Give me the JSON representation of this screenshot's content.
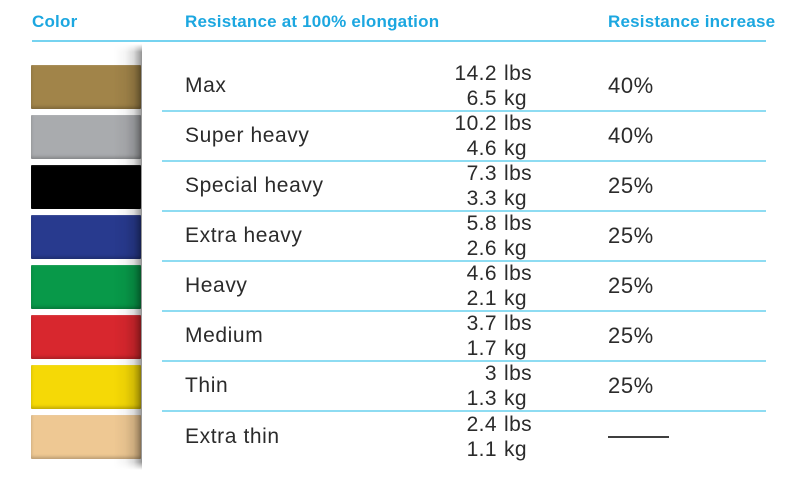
{
  "header": {
    "col_color": "Color",
    "col_resistance": "Resistance at 100% elongation",
    "col_increase": "Resistance increase"
  },
  "units": {
    "lbs": "lbs",
    "kg": "kg"
  },
  "colors": {
    "accent_cyan": "#1CA7E0",
    "header_rule": "#76D3F0",
    "row_rule": "#8EDCF2",
    "text_dark": "#2B2B2B",
    "roll_shade_gray": "#9A9A9A",
    "dash_gray": "#3F3F3F"
  },
  "chart_data": {
    "type": "table",
    "title": "Resistance band color chart",
    "columns": [
      "Color",
      "Resistance at 100% elongation",
      "Resistance increase"
    ],
    "rows": [
      {
        "color_name": "gold",
        "swatch_hex": "#A18449",
        "label": "Max",
        "lbs": "14.2",
        "kg": "6.5",
        "increase": "40%"
      },
      {
        "color_name": "silver",
        "swatch_hex": "#A9ABAE",
        "label": "Super heavy",
        "lbs": "10.2",
        "kg": "4.6",
        "increase": "40%"
      },
      {
        "color_name": "black",
        "swatch_hex": "#000000",
        "label": "Special heavy",
        "lbs": "7.3",
        "kg": "3.3",
        "increase": "25%"
      },
      {
        "color_name": "blue",
        "swatch_hex": "#283A8E",
        "label": "Extra heavy",
        "lbs": "5.8",
        "kg": "2.6",
        "increase": "25%"
      },
      {
        "color_name": "green",
        "swatch_hex": "#089949",
        "label": "Heavy",
        "lbs": "4.6",
        "kg": "2.1",
        "increase": "25%"
      },
      {
        "color_name": "red",
        "swatch_hex": "#D8272E",
        "label": "Medium",
        "lbs": "3.7",
        "kg": "1.7",
        "increase": "25%"
      },
      {
        "color_name": "yellow",
        "swatch_hex": "#F5D906",
        "label": "Thin",
        "lbs": "3",
        "kg": "1.3",
        "increase": "25%"
      },
      {
        "color_name": "beige",
        "swatch_hex": "#EEC893",
        "label": "Extra thin",
        "lbs": "2.4",
        "kg": "1.1",
        "increase": "—"
      }
    ]
  }
}
